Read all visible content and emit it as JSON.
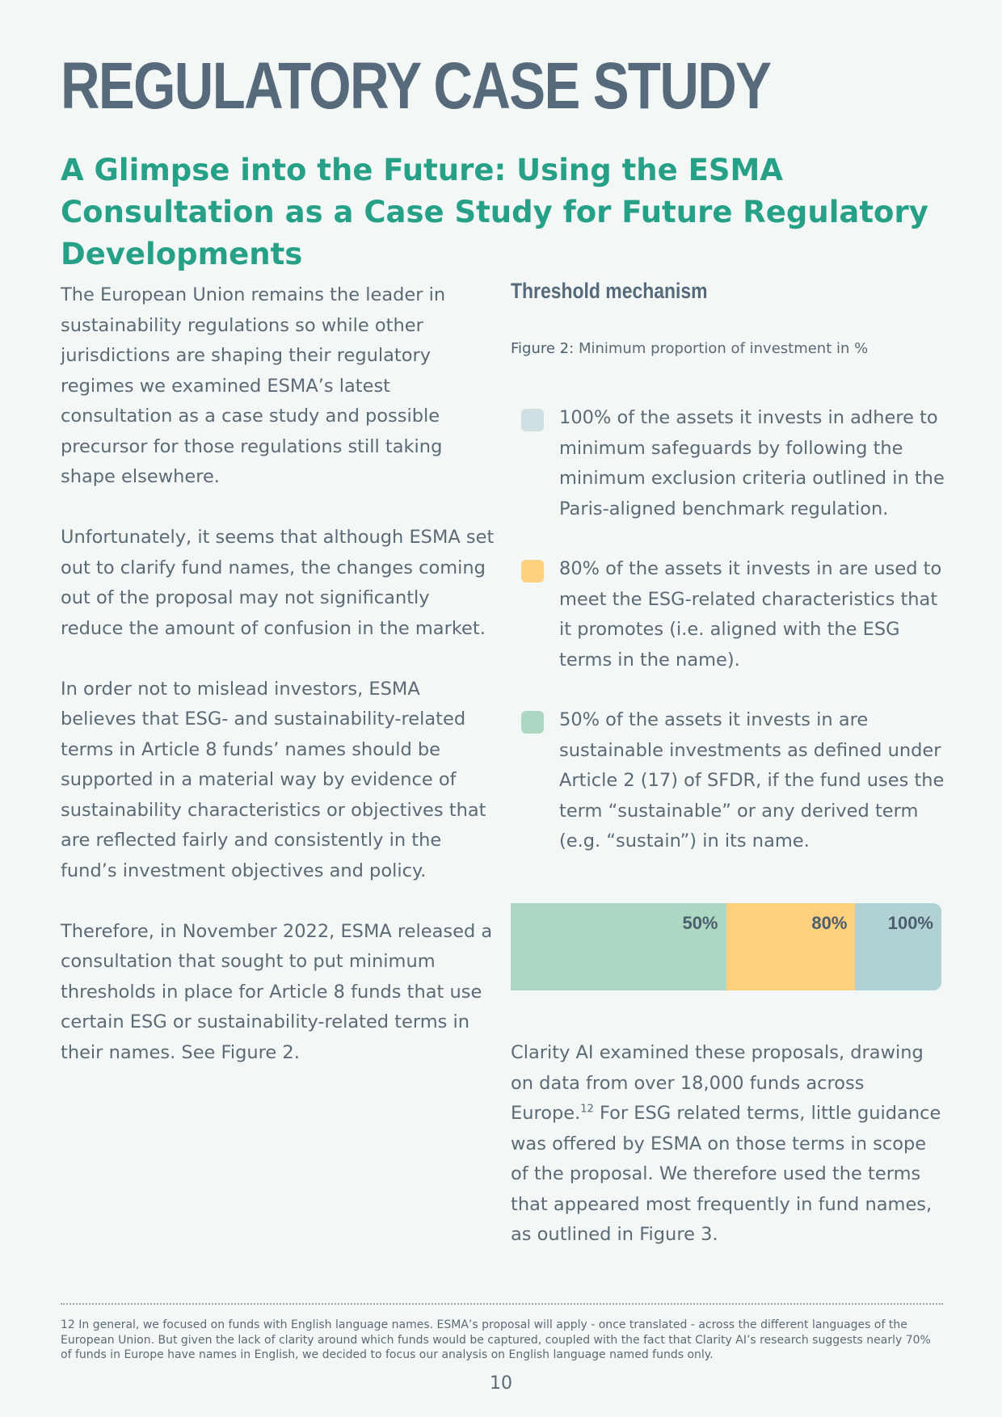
{
  "header": {
    "title": "REGULATORY CASE STUDY",
    "subtitle": "A Glimpse into the Future: Using the ESMA Consultation as a Case Study for Future Regulatory Developments"
  },
  "left_column": {
    "paragraphs": [
      "The European Union remains the leader in sustainability regulations so while other jurisdictions are shaping their regulatory regimes we examined ESMA’s latest consultation as a case study and possible precursor for those regulations still taking shape elsewhere.",
      "Unfortunately, it seems that although ESMA set out to clarify fund names, the changes coming out of the proposal may not significantly reduce the amount of confusion in the market.",
      "In order not to mislead investors, ESMA believes that ESG- and sustainability-related terms in Article 8 funds’ names should be supported in a material way by evidence of sustainability characteristics or objectives that are reflected fairly and consistently in the fund’s investment objectives and policy.",
      "Therefore, in November 2022, ESMA released a consultation that sought to put minimum thresholds in place for Article 8 funds that use certain ESG or sustainability-related terms in their names. See Figure 2."
    ]
  },
  "figure": {
    "section_heading": "Threshold mechanism",
    "caption_label": "Figure 2:",
    "caption_text": "Minimum proportion of investment in %",
    "legend": [
      {
        "color": "#cfdfe2",
        "text": "100% of the assets it invests in adhere to minimum safeguards by following the minimum exclusion criteria outlined in the Paris-aligned benchmark regulation."
      },
      {
        "color": "#fdd07e",
        "text": "80% of the assets it invests in are used to meet the ESG-related characteristics that it promotes (i.e. aligned with the ESG terms in the name)."
      },
      {
        "color": "#acd8c3",
        "text": "50% of the assets it invests in are sustainable investments as defined under Article 2 (17) of SFDR, if the fund uses the term “sustainable” or any derived term (e.g. “sustain”) in its name."
      }
    ]
  },
  "chart_data": {
    "type": "bar",
    "categories": [
      "50%",
      "80%",
      "100%"
    ],
    "values": [
      50,
      80,
      100
    ],
    "colors": [
      "#acd8c3",
      "#fdd07e",
      "#b1d2d4"
    ],
    "orientation": "horizontal-stacked-cumulative",
    "xlim": [
      0,
      100
    ]
  },
  "closing": {
    "text_before": "Clarity AI examined these proposals, drawing on data from over 18,000 funds across Europe.",
    "footnote_ref": "12",
    "text_after": " For ESG related terms, little guidance was offered by ESMA on those terms in scope of the proposal. We therefore used the terms that appeared most frequently in fund names, as outlined in Figure 3."
  },
  "footnote": {
    "text": "12 In general, we focused on funds with English language names. ESMA’s proposal will apply - once translated - across the different languages of the European Union. But given the lack of clarity around which funds would be captured, coupled with the fact that Clarity AI’s research suggests nearly 70% of funds in Europe have names in English, we decided to focus our analysis on English language named funds only."
  },
  "page_number": "10"
}
